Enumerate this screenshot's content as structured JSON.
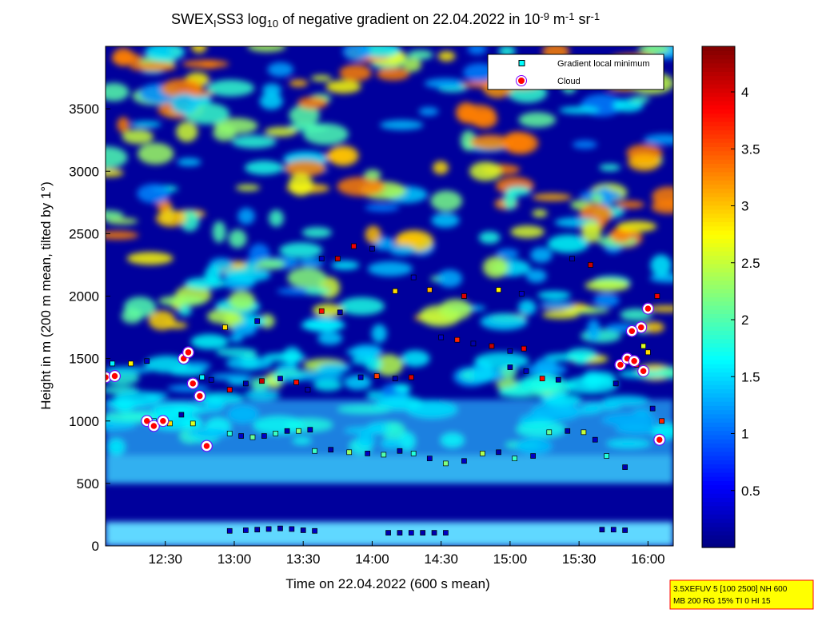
{
  "chart_data": {
    "type": "heatmap-scatter",
    "title": [
      {
        "text": "SWEX"
      },
      {
        "sub": "I"
      },
      {
        "text": "SS3 log"
      },
      {
        "sub": "10"
      },
      {
        "text": " of negative gradient on 22.04.2022 in 10"
      },
      {
        "sup": "-9"
      },
      {
        "text": " m"
      },
      {
        "sup": "-1"
      },
      {
        "text": " sr"
      },
      {
        "sup": "-1"
      }
    ],
    "x_label": "Time on 22.04.2022 (600 s mean)",
    "y_label": "Height in m (200 m mean, tilted by 1°)",
    "xlim": [
      724,
      971
    ],
    "xticks": [
      {
        "value": 750,
        "label": "12:30"
      },
      {
        "value": 780,
        "label": "13:00"
      },
      {
        "value": 810,
        "label": "13:30"
      },
      {
        "value": 840,
        "label": "14:00"
      },
      {
        "value": 870,
        "label": "14:30"
      },
      {
        "value": 900,
        "label": "15:00"
      },
      {
        "value": 930,
        "label": "15:30"
      },
      {
        "value": 960,
        "label": "16:00"
      }
    ],
    "ylim": [
      0,
      4000
    ],
    "yticks": [
      0,
      500,
      1000,
      1500,
      2000,
      2500,
      3000,
      3500
    ],
    "clim": [
      0,
      4.4
    ],
    "cticks": [
      0.5,
      1,
      1.5,
      2,
      2.5,
      3,
      3.5,
      4
    ],
    "legend": "upper right",
    "series": [
      {
        "name": "Gradient local minimum",
        "color": "#00ffff",
        "x": [
          778,
          785,
          790,
          795,
          800,
          805,
          810,
          815,
          847,
          852,
          857,
          862,
          867,
          872,
          940,
          945,
          950,
          778,
          783,
          788,
          793,
          798,
          803,
          808,
          813,
          815,
          822,
          830,
          838,
          845,
          852,
          858,
          865,
          872,
          880,
          888,
          895,
          902,
          910,
          917,
          925,
          932,
          937,
          942,
          950,
          778,
          785,
          792,
          800,
          807,
          812,
          835,
          842,
          850,
          857,
          870,
          877,
          884,
          892,
          900,
          906,
          900,
          907,
          914,
          921,
          818,
          825,
          832,
          840,
          850,
          858,
          865,
          880,
          895,
          905,
          927,
          935,
          776,
          790,
          818,
          826,
          727,
          735,
          742,
          745,
          752,
          757,
          762,
          766,
          770,
          946,
          955,
          960,
          962,
          966,
          958,
          964
        ],
        "y": [
          120,
          125,
          130,
          135,
          140,
          135,
          125,
          120,
          105,
          105,
          105,
          105,
          105,
          105,
          130,
          130,
          125,
          900,
          880,
          870,
          880,
          900,
          920,
          920,
          930,
          760,
          770,
          750,
          740,
          730,
          760,
          740,
          700,
          660,
          680,
          740,
          750,
          700,
          720,
          910,
          920,
          910,
          850,
          720,
          630,
          1250,
          1300,
          1320,
          1340,
          1310,
          1250,
          1350,
          1360,
          1340,
          1350,
          1670,
          1650,
          1620,
          1600,
          1560,
          1580,
          1430,
          1400,
          1340,
          1330,
          2300,
          2300,
          2400,
          2380,
          2040,
          2150,
          2050,
          2000,
          2050,
          2020,
          2300,
          2250,
          1750,
          1800,
          1880,
          1870,
          1460,
          1460,
          1480,
          1000,
          980,
          1050,
          980,
          1350,
          1330,
          1300,
          1450,
          1550,
          1100,
          1000,
          1600,
          2000
        ],
        "z": [
          0.3,
          0.3,
          0.2,
          0.3,
          0.2,
          0.3,
          0.2,
          0.3,
          0.2,
          0.2,
          0.3,
          0.2,
          0.2,
          0.3,
          0.2,
          0.3,
          0.2,
          1.8,
          0.3,
          2.1,
          0.3,
          1.9,
          0.2,
          2.2,
          0.3,
          1.9,
          0.2,
          2.3,
          0.3,
          2.0,
          0.2,
          1.8,
          0.3,
          2.2,
          0.3,
          2.4,
          0.2,
          1.9,
          0.3,
          2.1,
          0.2,
          2.5,
          0.3,
          1.8,
          0.2,
          3.9,
          0.2,
          4.1,
          0.3,
          3.8,
          0.2,
          0.3,
          3.6,
          0.2,
          4.0,
          0.3,
          3.7,
          0.2,
          4.1,
          0.3,
          3.9,
          0.2,
          0.3,
          3.8,
          0.2,
          0.3,
          4.1,
          3.9,
          0.2,
          2.9,
          0.3,
          3.1,
          4.0,
          2.8,
          0.3,
          0.2,
          4.1,
          2.9,
          0.3,
          3.8,
          0.2,
          1.6,
          2.8,
          0.3,
          1.7,
          2.9,
          0.2,
          2.6,
          1.6,
          0.3,
          0.2,
          3.8,
          2.9,
          0.3,
          3.7,
          2.6,
          3.9
        ]
      },
      {
        "name": "Cloud",
        "color": "#ff0000",
        "x": [
          724,
          728,
          742,
          745,
          749,
          758,
          760,
          762,
          765,
          768,
          948,
          951,
          954,
          957,
          953,
          960,
          965,
          958
        ],
        "y": [
          1350,
          1360,
          1000,
          960,
          1000,
          1500,
          1550,
          1300,
          1200,
          800,
          1450,
          1500,
          1480,
          1750,
          1720,
          1900,
          850,
          1400
        ]
      }
    ],
    "info": [
      "3.5XEFUV 5 [100 2500] NH 600",
      "MB 200 RG 15% TI 0 HI 15"
    ]
  }
}
